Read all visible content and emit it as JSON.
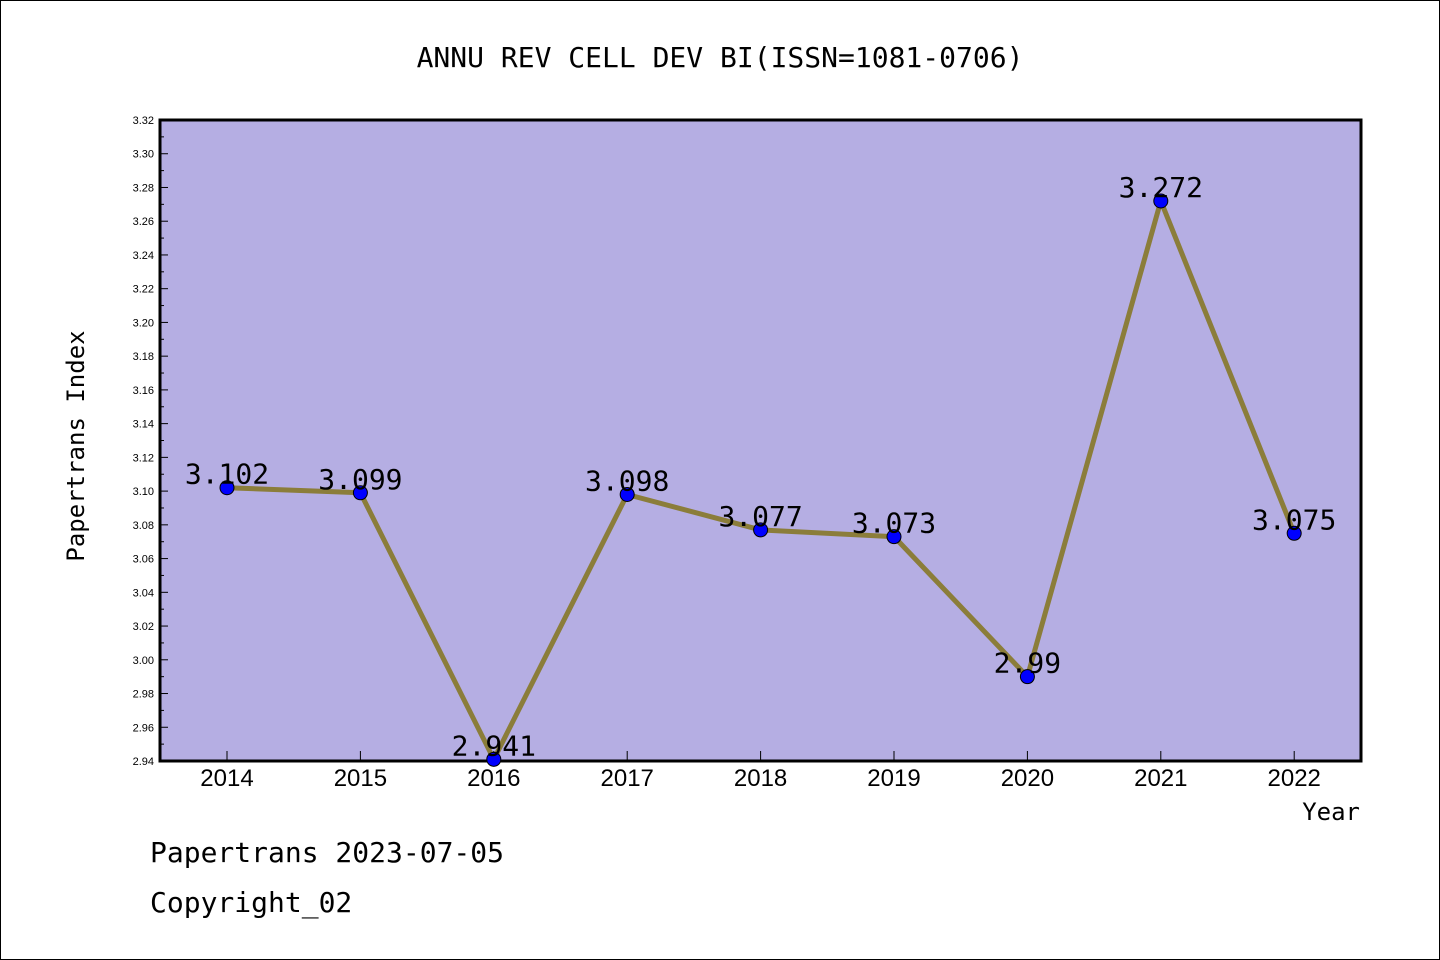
{
  "chart_data": {
    "type": "line",
    "title": "ANNU REV CELL DEV BI(ISSN=1081-0706)",
    "xlabel": "Year",
    "ylabel": "Papertrans Index",
    "x": [
      "2014",
      "2015",
      "2016",
      "2017",
      "2018",
      "2019",
      "2020",
      "2021",
      "2022"
    ],
    "series": [
      {
        "values": [
          3.102,
          3.099,
          2.941,
          3.098,
          3.077,
          3.073,
          2.99,
          3.272,
          3.075
        ]
      }
    ],
    "ylim": [
      2.94,
      3.32
    ],
    "yticks": [
      "2.94",
      "2.96",
      "2.98",
      "3.00",
      "3.02",
      "3.04",
      "3.06",
      "3.08",
      "3.10",
      "3.12",
      "3.14",
      "3.16",
      "3.18",
      "3.20",
      "3.22",
      "3.24",
      "3.26",
      "3.28",
      "3.30",
      "3.32"
    ],
    "data_labels": [
      "3.102",
      "3.099",
      "2.941",
      "3.098",
      "3.077",
      "3.073",
      "2.99",
      "3.272",
      "3.075"
    ],
    "colors": {
      "plot_bg": "#b5aee3",
      "line": "#8b7d3a",
      "marker": "#0000ff"
    },
    "grid": false,
    "legend": "none"
  },
  "footer": {
    "line1": "Papertrans 2023-07-05",
    "line2": "Copyright_02"
  }
}
